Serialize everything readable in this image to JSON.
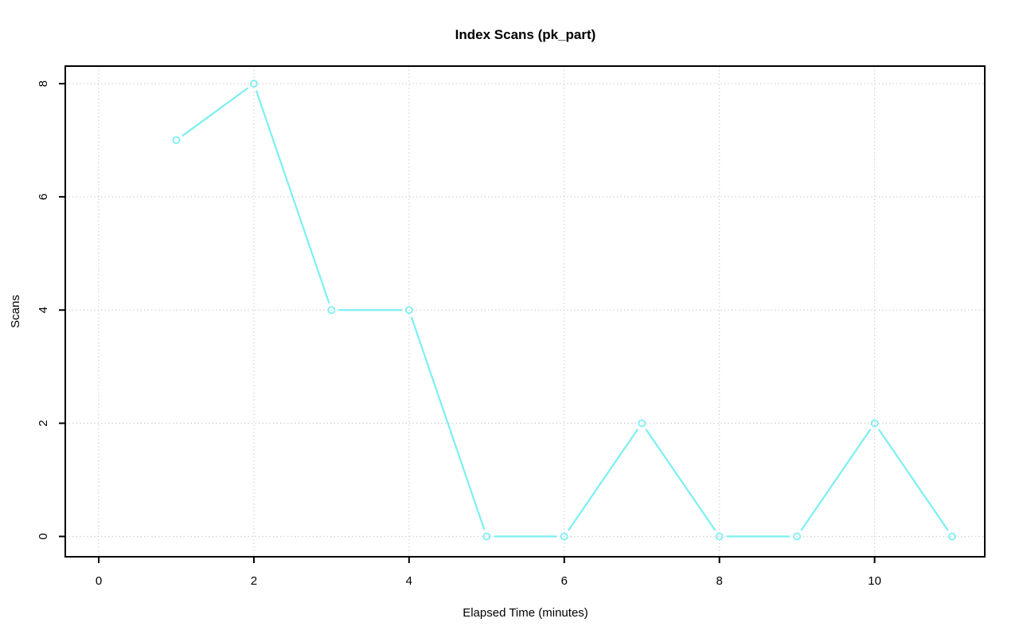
{
  "chart_data": {
    "type": "line",
    "title": "Index Scans (pk_part)",
    "xlabel": "Elapsed Time (minutes)",
    "ylabel": "Scans",
    "x": [
      1,
      2,
      3,
      4,
      5,
      6,
      7,
      8,
      9,
      10,
      11
    ],
    "y": [
      7,
      8,
      4,
      4,
      0,
      0,
      2,
      0,
      0,
      2,
      0
    ],
    "xticks": [
      0,
      2,
      4,
      6,
      8,
      10
    ],
    "yticks": [
      0,
      2,
      4,
      6,
      8
    ],
    "xlim": [
      -0.43,
      11.42
    ],
    "ylim": [
      -0.36,
      8.31
    ],
    "grid": true,
    "grid_style": "dotted",
    "marker": "open-circle",
    "line_style": "points-and-lines",
    "line_color": "#7CEFF2",
    "grid_color": "#D4D4D4",
    "axis_color": "#000000",
    "background_color": "#FFFFFF"
  }
}
